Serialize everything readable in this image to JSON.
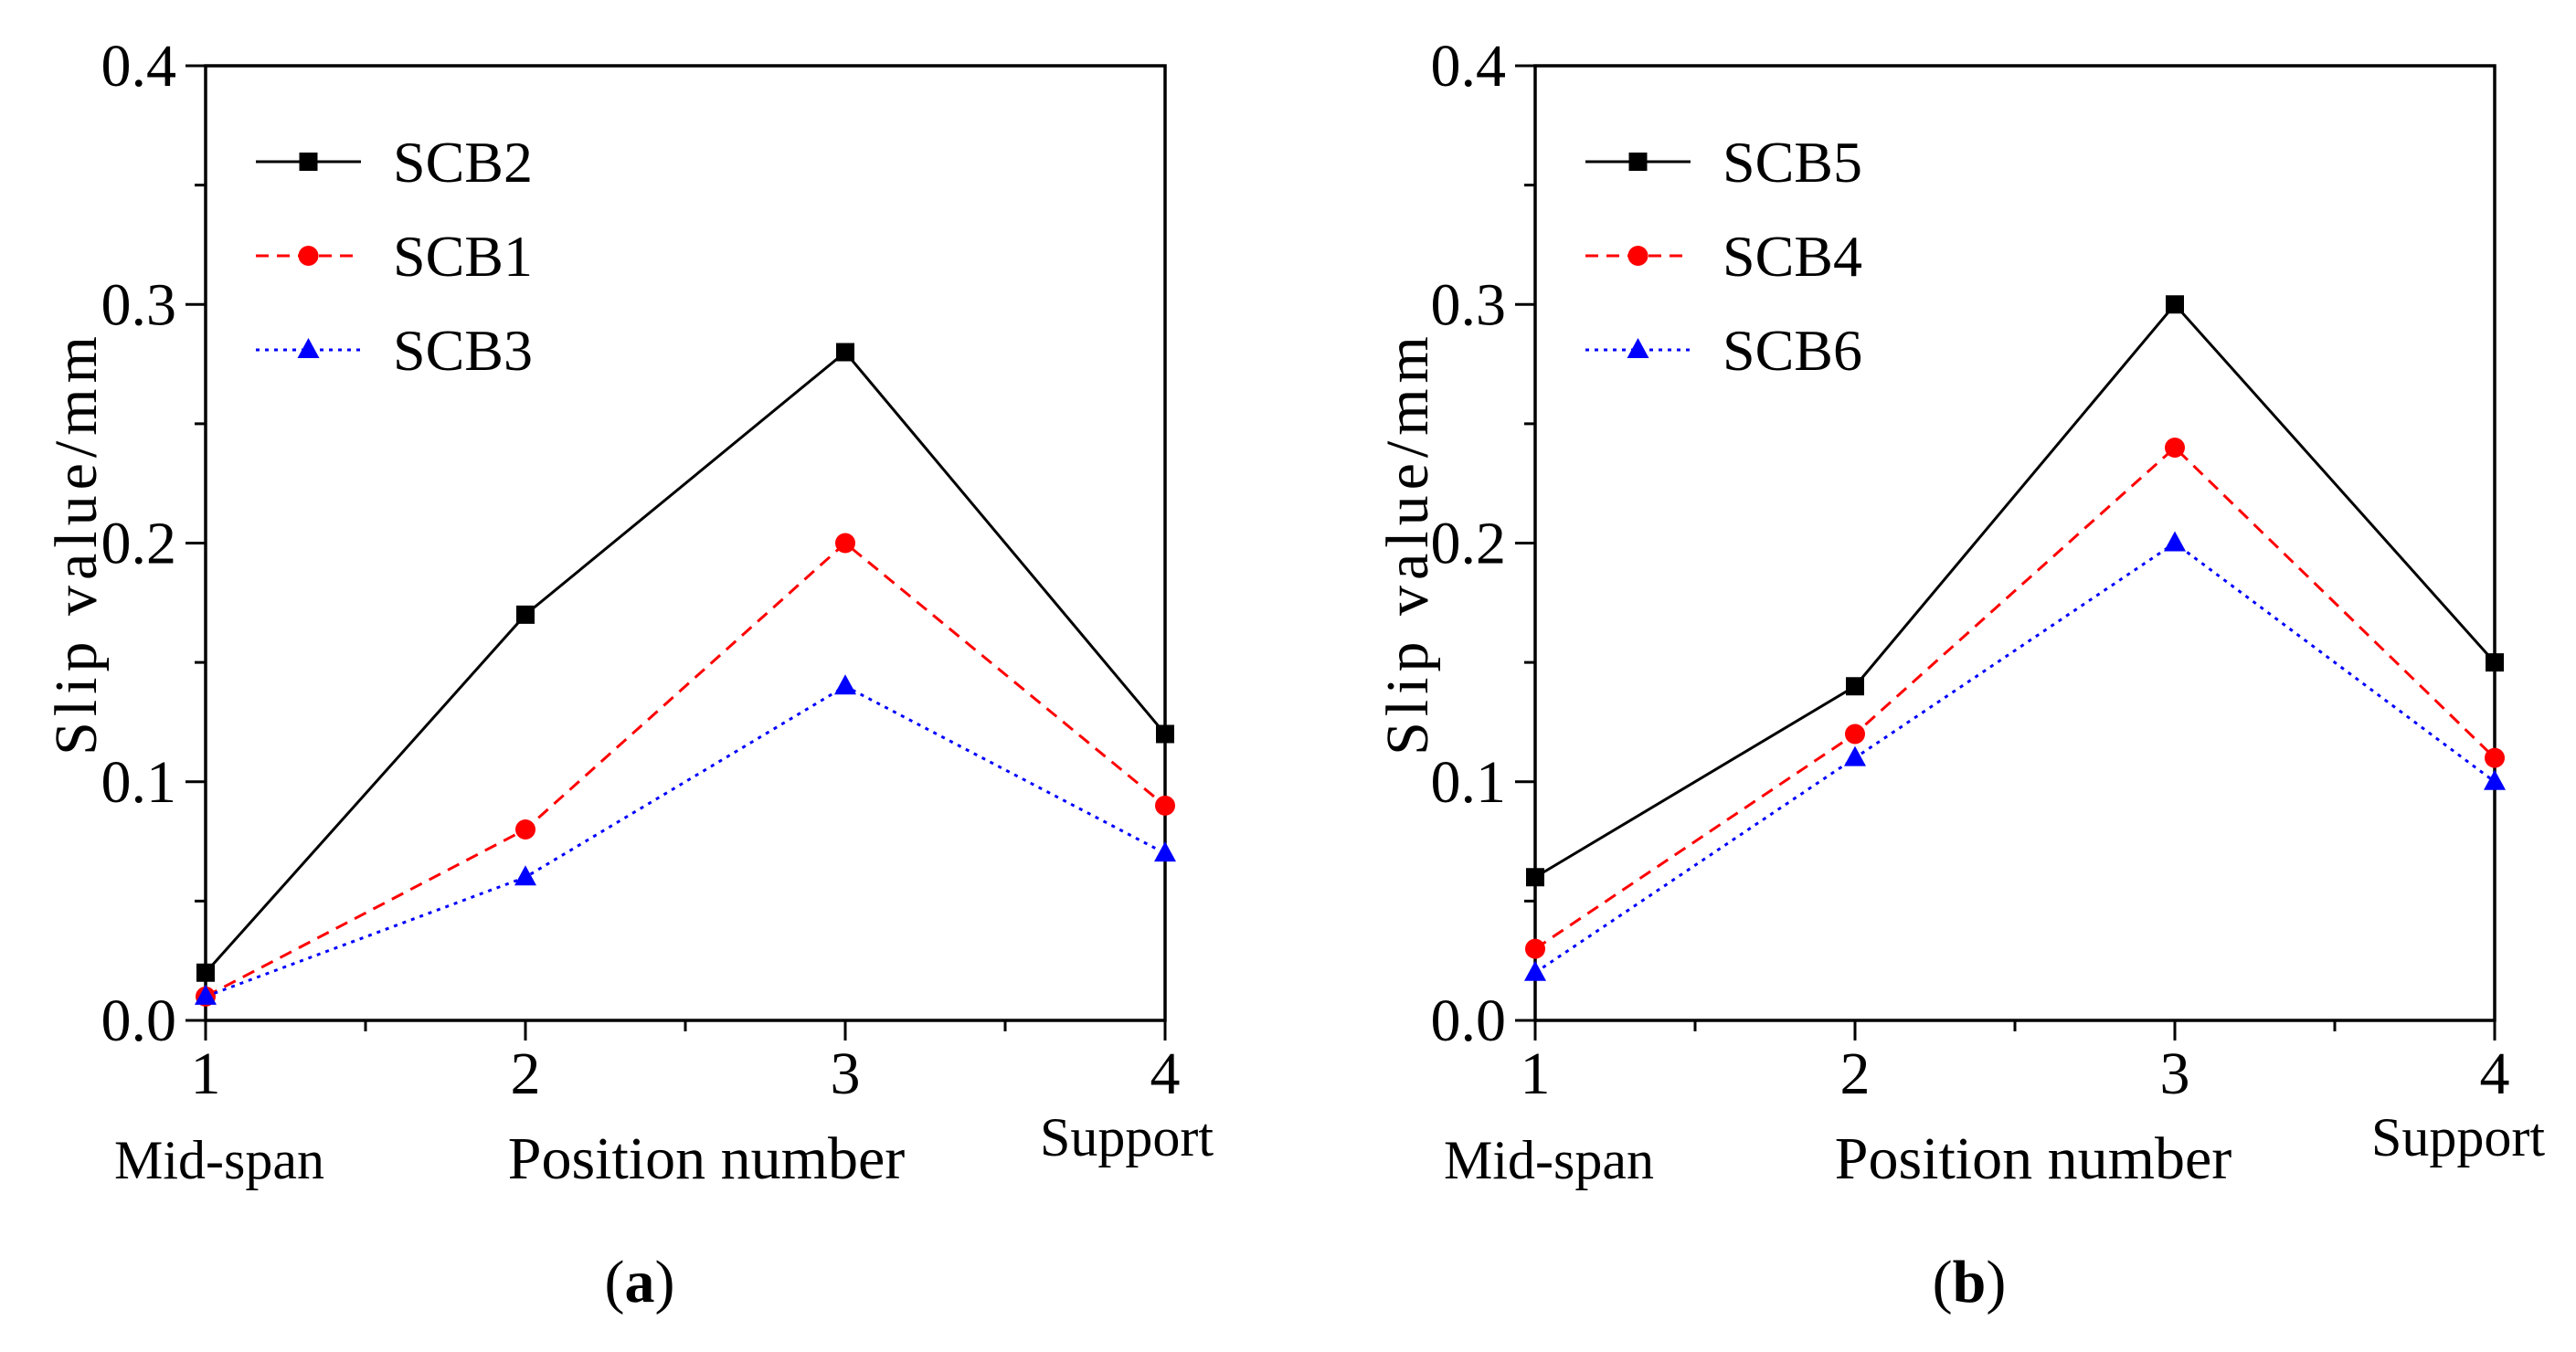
{
  "chart_data": [
    {
      "type": "line",
      "panel": "a",
      "caption_letter": "a",
      "x": [
        1,
        2,
        3,
        4
      ],
      "x_tick_labels": [
        "1",
        "2",
        "3",
        "4"
      ],
      "x_category_labels": {
        "first": "Mid-span",
        "middle": "Position number",
        "last": "Support"
      },
      "xlabel": "Position number",
      "ylabel": "Slip value/mm",
      "ylim": [
        0.0,
        0.4
      ],
      "y_ticks": [
        0.0,
        0.1,
        0.2,
        0.3,
        0.4
      ],
      "y_tick_labels": [
        "0.0",
        "0.1",
        "0.2",
        "0.3",
        "0.4"
      ],
      "legend_position": "top-left",
      "series": [
        {
          "name": "SCB2",
          "values": [
            0.02,
            0.17,
            0.28,
            0.12
          ],
          "color": "#000000",
          "dash": "solid",
          "marker": "square"
        },
        {
          "name": "SCB1",
          "values": [
            0.01,
            0.08,
            0.2,
            0.09
          ],
          "color": "#ff0000",
          "dash": "dashed",
          "marker": "circle"
        },
        {
          "name": "SCB3",
          "values": [
            0.01,
            0.06,
            0.14,
            0.07
          ],
          "color": "#0000ff",
          "dash": "dotted",
          "marker": "triangle"
        }
      ]
    },
    {
      "type": "line",
      "panel": "b",
      "caption_letter": "b",
      "x": [
        1,
        2,
        3,
        4
      ],
      "x_tick_labels": [
        "1",
        "2",
        "3",
        "4"
      ],
      "x_category_labels": {
        "first": "Mid-span",
        "middle": "Position number",
        "last": "Support"
      },
      "xlabel": "Position number",
      "ylabel": "Slip value/mm",
      "ylim": [
        0.0,
        0.4
      ],
      "y_ticks": [
        0.0,
        0.1,
        0.2,
        0.3,
        0.4
      ],
      "y_tick_labels": [
        "0.0",
        "0.1",
        "0.2",
        "0.3",
        "0.4"
      ],
      "legend_position": "top-left",
      "series": [
        {
          "name": "SCB5",
          "values": [
            0.06,
            0.14,
            0.3,
            0.15
          ],
          "color": "#000000",
          "dash": "solid",
          "marker": "square"
        },
        {
          "name": "SCB4",
          "values": [
            0.03,
            0.12,
            0.24,
            0.11
          ],
          "color": "#ff0000",
          "dash": "dashed",
          "marker": "circle"
        },
        {
          "name": "SCB6",
          "values": [
            0.02,
            0.11,
            0.2,
            0.1
          ],
          "color": "#0000ff",
          "dash": "dotted",
          "marker": "triangle"
        }
      ]
    }
  ]
}
